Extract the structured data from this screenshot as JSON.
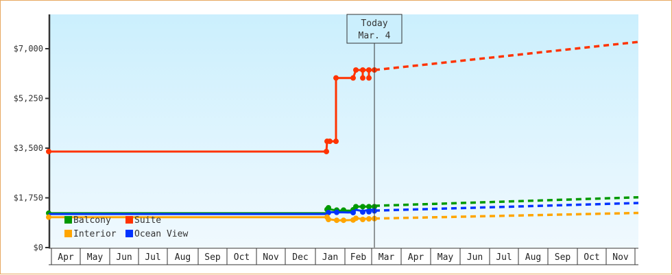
{
  "chart_data": {
    "type": "line",
    "title": "",
    "xlabel": "",
    "ylabel": "",
    "ylim": [
      0,
      7875
    ],
    "y_ticks": [
      {
        "value": 0,
        "label": "$0"
      },
      {
        "value": 1750,
        "label": "$1,750"
      },
      {
        "value": 3500,
        "label": "$3,500"
      },
      {
        "value": 5250,
        "label": "$5,250"
      },
      {
        "value": 7000,
        "label": "$7,000"
      }
    ],
    "x_months": [
      "Apr",
      "May",
      "Jun",
      "Jul",
      "Aug",
      "Sep",
      "Oct",
      "Nov",
      "Dec",
      "Jan",
      "Feb",
      "Mar",
      "Apr",
      "May",
      "Jun",
      "Jul",
      "Aug",
      "Sep",
      "Oct",
      "Nov"
    ],
    "x_month_edges": [
      74,
      116,
      159,
      201,
      243,
      288,
      330,
      373,
      415,
      459,
      502,
      541,
      584,
      627,
      670,
      713,
      755,
      798,
      841,
      883,
      925
    ],
    "today_marker": {
      "line1": "Today",
      "line2": "Mar. 4",
      "x": 545
    },
    "legend": [
      {
        "name": "Balcony",
        "color": "#009900"
      },
      {
        "name": "Suite",
        "color": "#ff3300"
      },
      {
        "name": "Interior",
        "color": "#ffa500"
      },
      {
        "name": "Ocean View",
        "color": "#0033ff"
      }
    ],
    "series": [
      {
        "name": "Suite",
        "color": "#ff3300",
        "history": [
          [
            70,
            3380
          ],
          [
            475,
            3380
          ],
          [
            476,
            3740
          ],
          [
            480,
            3740
          ],
          [
            489,
            3740
          ],
          [
            489,
            5970
          ],
          [
            514,
            5970
          ],
          [
            518,
            6250
          ],
          [
            528,
            6250
          ],
          [
            528,
            5970
          ],
          [
            528,
            6250
          ],
          [
            537,
            6250
          ],
          [
            537,
            5970
          ],
          [
            537,
            6250
          ],
          [
            545,
            6250
          ]
        ],
        "markers": [
          [
            70,
            3380
          ],
          [
            475,
            3380
          ],
          [
            476,
            3740
          ],
          [
            480,
            3740
          ],
          [
            489,
            3740
          ],
          [
            489,
            5970
          ],
          [
            514,
            5970
          ],
          [
            518,
            6250
          ],
          [
            528,
            6250
          ],
          [
            528,
            5970
          ],
          [
            537,
            6250
          ],
          [
            537,
            5970
          ],
          [
            545,
            6250
          ]
        ],
        "forecast": [
          [
            545,
            6250
          ],
          [
            930,
            7240
          ]
        ]
      },
      {
        "name": "Balcony",
        "color": "#009900",
        "history": [
          [
            70,
            1210
          ],
          [
            476,
            1210
          ],
          [
            478,
            1360
          ],
          [
            490,
            1300
          ],
          [
            500,
            1300
          ],
          [
            514,
            1300
          ],
          [
            518,
            1440
          ],
          [
            528,
            1440
          ],
          [
            537,
            1440
          ],
          [
            545,
            1440
          ]
        ],
        "markers": [
          [
            70,
            1210
          ],
          [
            476,
            1340
          ],
          [
            478,
            1400
          ],
          [
            490,
            1320
          ],
          [
            500,
            1320
          ],
          [
            514,
            1330
          ],
          [
            518,
            1440
          ],
          [
            528,
            1440
          ],
          [
            537,
            1440
          ],
          [
            545,
            1440
          ]
        ],
        "forecast": [
          [
            545,
            1470
          ],
          [
            930,
            1770
          ]
        ]
      },
      {
        "name": "Ocean View",
        "color": "#0033ff",
        "history": [
          [
            70,
            1180
          ],
          [
            476,
            1180
          ],
          [
            478,
            1250
          ],
          [
            490,
            1240
          ],
          [
            500,
            1240
          ],
          [
            514,
            1230
          ],
          [
            518,
            1330
          ],
          [
            528,
            1280
          ],
          [
            537,
            1330
          ],
          [
            545,
            1330
          ]
        ],
        "markers": [
          [
            478,
            1230
          ],
          [
            490,
            1240
          ],
          [
            514,
            1230
          ],
          [
            528,
            1250
          ],
          [
            537,
            1260
          ],
          [
            545,
            1290
          ]
        ],
        "forecast": [
          [
            545,
            1300
          ],
          [
            930,
            1570
          ]
        ]
      },
      {
        "name": "Interior",
        "color": "#ffa500",
        "history": [
          [
            70,
            1070
          ],
          [
            476,
            1070
          ],
          [
            478,
            1000
          ],
          [
            490,
            960
          ],
          [
            500,
            960
          ],
          [
            514,
            970
          ],
          [
            518,
            1030
          ],
          [
            528,
            1010
          ],
          [
            537,
            1020
          ],
          [
            545,
            1020
          ]
        ],
        "markers": [
          [
            70,
            1070
          ],
          [
            476,
            1070
          ],
          [
            478,
            990
          ],
          [
            490,
            960
          ],
          [
            500,
            960
          ],
          [
            514,
            970
          ],
          [
            518,
            1030
          ],
          [
            528,
            990
          ],
          [
            537,
            1010
          ],
          [
            545,
            1020
          ]
        ],
        "forecast": [
          [
            545,
            1020
          ],
          [
            930,
            1220
          ]
        ]
      }
    ]
  },
  "today": {
    "line1": "Today",
    "line2": "Mar. 4"
  },
  "legend": {
    "balcony": "Balcony",
    "suite": "Suite",
    "interior": "Interior",
    "ocean_view": "Ocean View"
  },
  "y_axis": {
    "t0": "$0",
    "t1": "$1,750",
    "t2": "$3,500",
    "t3": "$5,250",
    "t4": "$7,000"
  }
}
